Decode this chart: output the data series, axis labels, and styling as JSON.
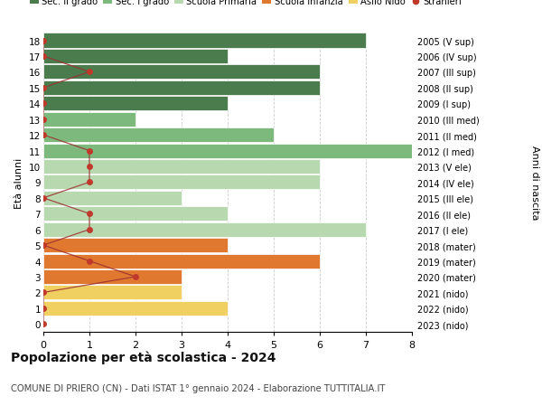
{
  "ages": [
    18,
    17,
    16,
    15,
    14,
    13,
    12,
    11,
    10,
    9,
    8,
    7,
    6,
    5,
    4,
    3,
    2,
    1,
    0
  ],
  "right_labels": [
    "2005 (V sup)",
    "2006 (IV sup)",
    "2007 (III sup)",
    "2008 (II sup)",
    "2009 (I sup)",
    "2010 (III med)",
    "2011 (II med)",
    "2012 (I med)",
    "2013 (V ele)",
    "2014 (IV ele)",
    "2015 (III ele)",
    "2016 (II ele)",
    "2017 (I ele)",
    "2018 (mater)",
    "2019 (mater)",
    "2020 (mater)",
    "2021 (nido)",
    "2022 (nido)",
    "2023 (nido)"
  ],
  "bar_values": [
    7,
    4,
    6,
    6,
    4,
    2,
    5,
    8,
    6,
    6,
    3,
    4,
    7,
    4,
    6,
    3,
    3,
    4,
    0
  ],
  "bar_colors": [
    "#4a7c4e",
    "#4a7c4e",
    "#4a7c4e",
    "#4a7c4e",
    "#4a7c4e",
    "#7db87d",
    "#7db87d",
    "#7db87d",
    "#b8d9b0",
    "#b8d9b0",
    "#b8d9b0",
    "#b8d9b0",
    "#b8d9b0",
    "#e07830",
    "#e07830",
    "#e07830",
    "#f0d060",
    "#f0d060",
    "#f0d060"
  ],
  "stranieri_x": [
    0,
    0,
    1,
    0,
    0,
    0,
    0,
    1,
    1,
    1,
    0,
    1,
    1,
    0,
    1,
    2,
    0,
    0,
    0
  ],
  "legend_labels": [
    "Sec. II grado",
    "Sec. I grado",
    "Scuola Primaria",
    "Scuola Infanzia",
    "Asilo Nido",
    "Stranieri"
  ],
  "legend_colors": [
    "#4a7c4e",
    "#7db87d",
    "#b8d9b0",
    "#e07830",
    "#f0d060",
    "#c0392b"
  ],
  "title": "Popolazione per età scolastica - 2024",
  "subtitle": "COMUNE DI PRIERO (CN) - Dati ISTAT 1° gennaio 2024 - Elaborazione TUTTITALIA.IT",
  "ylabel_left": "Età alunni",
  "ylabel_right": "Anni di nascita",
  "bg_color": "#ffffff",
  "grid_color": "#cccccc",
  "stranieri_color": "#c0392b",
  "stranieri_line_color": "#9b3030"
}
